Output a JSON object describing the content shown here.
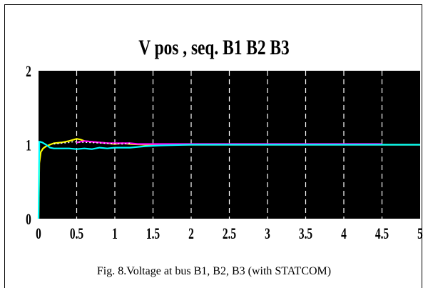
{
  "caption": "Fig. 8.Voltage at bus B1, B2, B3 (with STATCOM)",
  "chart_data": {
    "type": "line",
    "title": "V pos , seq. B1 B2 B3",
    "xlabel": "",
    "ylabel": "",
    "xlim": [
      0,
      5
    ],
    "ylim": [
      0,
      2
    ],
    "x_ticks": [
      "0",
      "0.5",
      "1",
      "1.5",
      "2",
      "2.5",
      "3",
      "3.5",
      "4",
      "4.5",
      "5"
    ],
    "y_ticks": [
      "0",
      "1",
      "2"
    ],
    "grid": "vertical dashed",
    "background": "#000000",
    "grid_color": "#ffffff",
    "series": [
      {
        "color": "#ffff00",
        "x": [
          0,
          0.01,
          0.03,
          0.06,
          0.1,
          0.15,
          0.2,
          0.3,
          0.4,
          0.5,
          0.55,
          0.6,
          0.7,
          0.8,
          0.9,
          1.0,
          1.1,
          1.2,
          1.4,
          1.6,
          2.0,
          2.6,
          3.0,
          4.0,
          5.0
        ],
        "values": [
          0,
          0.75,
          0.9,
          0.95,
          0.98,
          1.0,
          1.02,
          1.03,
          1.05,
          1.08,
          1.07,
          1.05,
          1.04,
          1.03,
          1.02,
          1.01,
          1.02,
          1.01,
          1.0,
          1.0,
          1.0,
          1.0,
          1.0,
          1.0,
          1.0
        ]
      },
      {
        "color": "#ff00ff",
        "x": [
          0.5,
          0.6,
          0.7,
          0.8,
          0.9,
          1.0,
          1.1,
          1.2,
          1.3,
          1.4,
          1.6,
          2.0,
          2.5,
          3.0,
          3.5,
          4.0,
          4.5
        ],
        "values": [
          1.03,
          1.05,
          1.04,
          1.03,
          1.02,
          1.02,
          1.02,
          1.02,
          1.01,
          1.01,
          1.01,
          1.01,
          1.01,
          1.01,
          1.01,
          1.01,
          1.01
        ]
      },
      {
        "color": "#00ffff",
        "x": [
          0,
          0.01,
          0.02,
          0.05,
          0.1,
          0.15,
          0.2,
          0.3,
          0.4,
          0.5,
          0.6,
          0.7,
          0.8,
          0.9,
          1.0,
          1.1,
          1.2,
          1.4,
          1.6,
          2.0,
          2.5,
          3.0,
          4.0,
          4.5,
          5.0
        ],
        "values": [
          0,
          1.04,
          1.04,
          1.03,
          1.0,
          0.96,
          0.95,
          0.95,
          0.95,
          0.94,
          0.95,
          0.94,
          0.96,
          0.95,
          0.96,
          0.96,
          0.96,
          0.98,
          0.99,
          1.0,
          1.0,
          1.0,
          1.0,
          1.0,
          1.0
        ]
      },
      {
        "color": "#ffffff",
        "x": [
          0.2,
          0.3,
          0.4,
          0.45,
          1.1,
          1.2
        ],
        "values": [
          1.01,
          1.02,
          1.03,
          1.04,
          1.01,
          1.02
        ]
      }
    ]
  }
}
